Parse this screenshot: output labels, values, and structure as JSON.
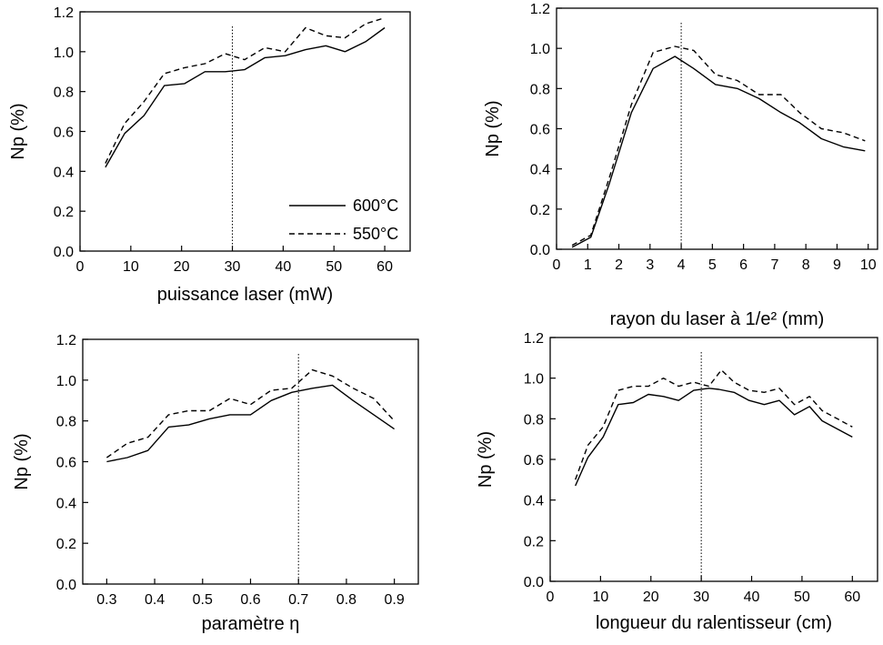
{
  "chart_data": [
    {
      "type": "line",
      "xlabel": "puissance laser (mW)",
      "ylabel": "Np (%)",
      "xlim": [
        0,
        65
      ],
      "ylim": [
        0,
        1.2
      ],
      "xticks": [
        0,
        10,
        20,
        30,
        40,
        50,
        60
      ],
      "yticks": [
        0.0,
        0.2,
        0.4,
        0.6,
        0.8,
        1.0,
        1.2
      ],
      "xtick_labels": [
        "0",
        "10",
        "20",
        "30",
        "40",
        "50",
        "60"
      ],
      "ytick_labels": [
        "0.0",
        "0.2",
        "0.4",
        "0.6",
        "0.8",
        "1.0",
        "1.2"
      ],
      "vline_x": 30,
      "legend": {
        "position": "bottom-right"
      },
      "series": [
        {
          "name": "600°C",
          "style": "solid",
          "x": [
            5,
            8.8,
            12.6,
            16.6,
            20.6,
            24.6,
            28.6,
            32.4,
            36.4,
            40.4,
            44.4,
            48.4,
            52.2,
            56.2,
            60
          ],
          "y": [
            0.42,
            0.59,
            0.68,
            0.83,
            0.84,
            0.9,
            0.9,
            0.91,
            0.97,
            0.98,
            1.01,
            1.03,
            1.0,
            1.05,
            1.12
          ]
        },
        {
          "name": "550°C",
          "style": "dashed",
          "x": [
            5,
            8.8,
            12.6,
            16.6,
            20.6,
            24.6,
            28.6,
            32.4,
            36.4,
            40.4,
            44.4,
            48.4,
            52.2,
            56.2,
            60
          ],
          "y": [
            0.44,
            0.64,
            0.75,
            0.89,
            0.92,
            0.94,
            0.99,
            0.96,
            1.02,
            1.0,
            1.12,
            1.08,
            1.07,
            1.14,
            1.17
          ]
        }
      ]
    },
    {
      "type": "line",
      "xlabel": "rayon du laser à 1/e² (mm)",
      "ylabel": "Np (%)",
      "xlim": [
        0,
        10.3
      ],
      "ylim": [
        0,
        1.2
      ],
      "xticks": [
        0,
        1,
        2,
        3,
        4,
        5,
        6,
        7,
        8,
        9,
        10
      ],
      "yticks": [
        0.0,
        0.2,
        0.4,
        0.6,
        0.8,
        1.0,
        1.2
      ],
      "xtick_labels": [
        "0",
        "1",
        "2",
        "3",
        "4",
        "5",
        "6",
        "7",
        "8",
        "9",
        "10"
      ],
      "ytick_labels": [
        "0.0",
        "0.2",
        "0.4",
        "0.6",
        "0.8",
        "1.0",
        "1.2"
      ],
      "vline_x": 4,
      "series": [
        {
          "name": "600°C",
          "style": "solid",
          "x": [
            0.5,
            1.1,
            1.7,
            2.4,
            3.1,
            3.8,
            4.4,
            5.1,
            5.8,
            6.5,
            7.2,
            7.8,
            8.5,
            9.2,
            9.9
          ],
          "y": [
            0.01,
            0.06,
            0.33,
            0.68,
            0.9,
            0.96,
            0.9,
            0.82,
            0.8,
            0.75,
            0.68,
            0.63,
            0.55,
            0.51,
            0.49
          ]
        },
        {
          "name": "550°C",
          "style": "dashed",
          "x": [
            0.5,
            1.1,
            1.7,
            2.4,
            3.1,
            3.8,
            4.4,
            5.1,
            5.8,
            6.5,
            7.2,
            7.8,
            8.5,
            9.2,
            9.9
          ],
          "y": [
            0.02,
            0.07,
            0.36,
            0.72,
            0.98,
            1.01,
            0.99,
            0.87,
            0.84,
            0.77,
            0.77,
            0.68,
            0.6,
            0.58,
            0.54
          ]
        }
      ]
    },
    {
      "type": "line",
      "xlabel": "paramètre η",
      "ylabel": "Np (%)",
      "xlim": [
        0.25,
        0.95
      ],
      "ylim": [
        0,
        1.2
      ],
      "xticks": [
        0.3,
        0.4,
        0.5,
        0.6,
        0.7,
        0.8,
        0.9
      ],
      "yticks": [
        0.0,
        0.2,
        0.4,
        0.6,
        0.8,
        1.0,
        1.2
      ],
      "xtick_labels": [
        "0.3",
        "0.4",
        "0.5",
        "0.6",
        "0.7",
        "0.8",
        "0.9"
      ],
      "ytick_labels": [
        "0.0",
        "0.2",
        "0.4",
        "0.6",
        "0.8",
        "1.0",
        "1.2"
      ],
      "vline_x": 0.7,
      "series": [
        {
          "name": "600°C",
          "style": "solid",
          "x": [
            0.3,
            0.343,
            0.386,
            0.429,
            0.471,
            0.514,
            0.557,
            0.6,
            0.643,
            0.686,
            0.729,
            0.771,
            0.814,
            0.857,
            0.9
          ],
          "y": [
            0.6,
            0.62,
            0.655,
            0.77,
            0.78,
            0.81,
            0.83,
            0.83,
            0.9,
            0.94,
            0.96,
            0.975,
            0.9,
            0.83,
            0.76
          ]
        },
        {
          "name": "550°C",
          "style": "dashed",
          "x": [
            0.3,
            0.343,
            0.386,
            0.429,
            0.471,
            0.514,
            0.557,
            0.6,
            0.643,
            0.686,
            0.729,
            0.771,
            0.814,
            0.857,
            0.9
          ],
          "y": [
            0.62,
            0.69,
            0.72,
            0.83,
            0.85,
            0.85,
            0.91,
            0.88,
            0.95,
            0.96,
            1.05,
            1.02,
            0.96,
            0.91,
            0.8
          ]
        }
      ]
    },
    {
      "type": "line",
      "xlabel": "longueur du ralentisseur (cm)",
      "ylabel": "Np (%)",
      "xlim": [
        0,
        65
      ],
      "ylim": [
        0,
        1.2
      ],
      "xticks": [
        0,
        10,
        20,
        30,
        40,
        50,
        60
      ],
      "yticks": [
        0.0,
        0.2,
        0.4,
        0.6,
        0.8,
        1.0,
        1.2
      ],
      "xtick_labels": [
        "0",
        "10",
        "20",
        "30",
        "40",
        "50",
        "60"
      ],
      "ytick_labels": [
        "0.0",
        "0.2",
        "0.4",
        "0.6",
        "0.8",
        "1.0",
        "1.2"
      ],
      "vline_x": 30,
      "series": [
        {
          "name": "600°C",
          "style": "solid",
          "x": [
            5,
            7.5,
            10.5,
            13.5,
            16.5,
            19.5,
            22.5,
            25.5,
            28.5,
            31.5,
            33.5,
            36.5,
            39.5,
            42.5,
            45.5,
            48.5,
            51.5,
            54,
            57,
            60
          ],
          "y": [
            0.47,
            0.61,
            0.71,
            0.87,
            0.88,
            0.92,
            0.91,
            0.89,
            0.94,
            0.95,
            0.945,
            0.93,
            0.89,
            0.87,
            0.89,
            0.82,
            0.86,
            0.79,
            0.75,
            0.71
          ]
        },
        {
          "name": "550°C",
          "style": "dashed",
          "x": [
            5,
            7.5,
            10.5,
            13.5,
            16.5,
            19.5,
            22.5,
            25.5,
            28.5,
            31.5,
            34,
            36.5,
            39.5,
            42.5,
            45.5,
            48.5,
            51.5,
            54,
            57,
            60
          ],
          "y": [
            0.5,
            0.67,
            0.76,
            0.94,
            0.96,
            0.96,
            1.0,
            0.96,
            0.98,
            0.96,
            1.04,
            0.98,
            0.94,
            0.93,
            0.95,
            0.87,
            0.91,
            0.84,
            0.8,
            0.76
          ]
        }
      ]
    }
  ]
}
